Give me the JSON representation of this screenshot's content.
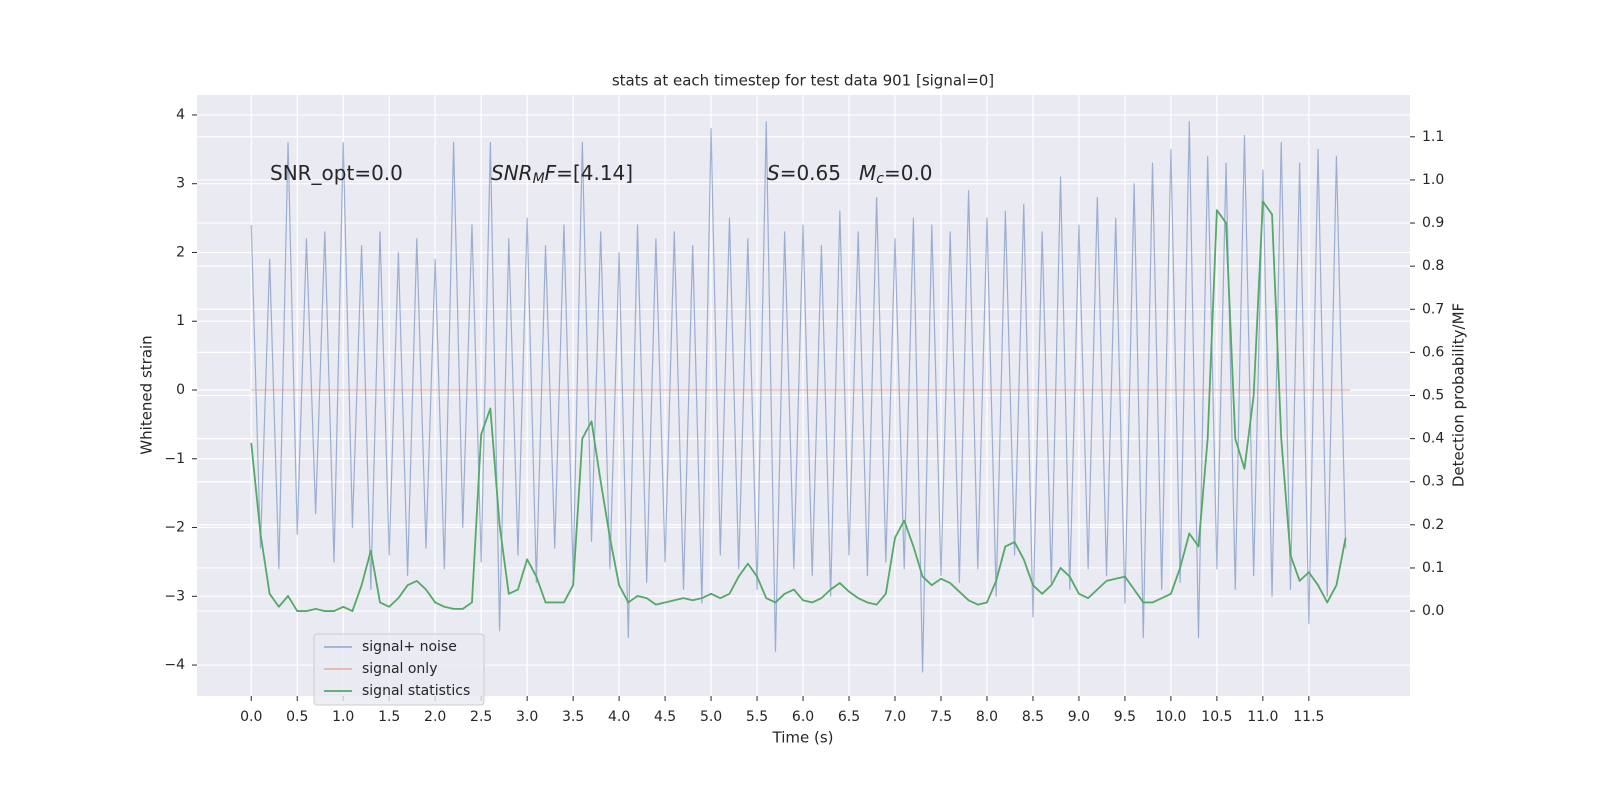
{
  "chart_data": {
    "type": "line",
    "title": "stats at each timestep for test data 901 [signal=0]",
    "xlabel": "Time (s)",
    "ylabel": "Whitened strain",
    "y2label": "Detection probability/MF",
    "xlim": [
      -0.59,
      12.6
    ],
    "ylim": [
      -4.45,
      4.29
    ],
    "y2lim": [
      -0.197,
      1.197
    ],
    "xticks": [
      {
        "value": 0,
        "label": "0.0"
      },
      0.5,
      {
        "value": 1,
        "label": "1.0"
      },
      1.5,
      {
        "value": 2,
        "label": "2.0"
      },
      2.5,
      {
        "value": 3,
        "label": "3.0"
      },
      3.5,
      {
        "value": 4,
        "label": "4.0"
      },
      4.5,
      {
        "value": 5,
        "label": "5.0"
      },
      5.5,
      {
        "value": 6,
        "label": "6.0"
      },
      6.5,
      {
        "value": 7,
        "label": "7.0"
      },
      7.5,
      {
        "value": 8,
        "label": "8.0"
      },
      8.5,
      {
        "value": 9,
        "label": "9.0"
      },
      9.5,
      {
        "value": 10,
        "label": "10.0"
      },
      10.5,
      {
        "value": 11,
        "label": "11.0"
      },
      11.5
    ],
    "yticks": [
      {
        "value": -4,
        "label": "−4"
      },
      {
        "value": -3,
        "label": "−3"
      },
      {
        "value": -2,
        "label": "−2"
      },
      {
        "value": -1,
        "label": "−1"
      },
      0,
      1,
      2,
      3,
      4
    ],
    "y2ticks": [
      {
        "value": 0,
        "label": "0.0"
      },
      0.1,
      0.2,
      0.3,
      0.4,
      0.5,
      0.6,
      0.7,
      0.8,
      0.9,
      {
        "value": 1,
        "label": "1.0"
      },
      1.1
    ],
    "grid": true,
    "legend": "lower left",
    "annotations": [
      [
        {
          "text": "SNR_opt=0.0"
        }
      ],
      [
        {
          "text": "SNR",
          "italic": true
        },
        {
          "text": "M",
          "italic": true,
          "sub": true
        },
        {
          "text": "F",
          "italic": true
        },
        {
          "text": "=[4.14]"
        }
      ],
      [
        {
          "text": "S",
          "italic": true
        },
        {
          "text": "=0.65"
        }
      ],
      [
        {
          "text": "M",
          "italic": true
        },
        {
          "text": "c",
          "italic": true,
          "sub": true
        },
        {
          "text": "=0.0"
        }
      ]
    ],
    "series": [
      {
        "name": "signal+ noise",
        "color": "#4c72b0",
        "opacity": 0.5,
        "x": [
          0,
          0.1,
          0.2,
          0.3,
          0.4,
          0.5,
          0.6,
          0.7,
          0.8,
          0.9,
          1,
          1.1,
          1.2,
          1.3,
          1.4,
          1.5,
          1.6,
          1.7,
          1.8,
          1.9,
          2,
          2.1,
          2.2,
          2.3,
          2.4,
          2.5,
          2.6,
          2.7,
          2.8,
          2.9,
          3,
          3.1,
          3.2,
          3.3,
          3.4,
          3.5,
          3.6,
          3.7,
          3.8,
          3.9,
          4,
          4.1,
          4.2,
          4.3,
          4.4,
          4.5,
          4.6,
          4.7,
          4.8,
          4.9,
          5,
          5.1,
          5.2,
          5.3,
          5.4,
          5.5,
          5.6,
          5.7,
          5.8,
          5.9,
          6,
          6.1,
          6.2,
          6.3,
          6.4,
          6.5,
          6.6,
          6.7,
          6.8,
          6.9,
          7,
          7.1,
          7.2,
          7.3,
          7.4,
          7.5,
          7.6,
          7.7,
          7.8,
          7.9,
          8,
          8.1,
          8.2,
          8.3,
          8.4,
          8.5,
          8.6,
          8.7,
          8.8,
          8.9,
          9,
          9.1,
          9.2,
          9.3,
          9.4,
          9.5,
          9.6,
          9.7,
          9.8,
          9.9,
          10,
          10.1,
          10.2,
          10.3,
          10.4,
          10.5,
          10.6,
          10.7,
          10.8,
          10.9,
          11,
          11.1,
          11.2,
          11.3,
          11.4,
          11.5,
          11.6,
          11.7,
          11.8,
          11.9
        ],
        "values": [
          2.4,
          -2.3,
          1.9,
          -2.6,
          3.6,
          -2.1,
          2.2,
          -1.8,
          2.3,
          -2.5,
          3.6,
          -2.0,
          2.1,
          -2.9,
          2.3,
          -2.4,
          2.0,
          -2.7,
          2.2,
          -2.3,
          1.9,
          -2.6,
          3.6,
          -2.0,
          2.4,
          -2.5,
          3.6,
          -3.5,
          2.2,
          -2.4,
          2.5,
          -2.8,
          2.1,
          -2.3,
          2.4,
          -2.7,
          3.6,
          -2.2,
          2.3,
          -2.6,
          2.0,
          -3.6,
          2.4,
          -2.8,
          2.2,
          -2.5,
          2.3,
          -2.9,
          2.1,
          -3.1,
          3.8,
          -2.4,
          2.5,
          -2.6,
          2.2,
          -2.9,
          3.9,
          -3.8,
          2.3,
          -2.6,
          2.4,
          -2.7,
          2.1,
          -3.0,
          2.6,
          -2.4,
          2.3,
          -2.7,
          2.8,
          -2.5,
          2.2,
          -2.6,
          2.5,
          -4.1,
          2.4,
          -2.7,
          2.3,
          -2.8,
          2.9,
          -2.6,
          2.5,
          -3.0,
          2.6,
          -2.4,
          2.7,
          -3.3,
          2.3,
          -2.8,
          3.1,
          -2.9,
          2.4,
          -2.6,
          2.8,
          -2.7,
          2.5,
          -3.1,
          3.0,
          -3.6,
          3.3,
          -2.9,
          3.5,
          -2.8,
          3.9,
          -3.6,
          3.4,
          -2.6,
          3.3,
          -2.9,
          3.7,
          -2.7,
          3.2,
          -3.0,
          3.6,
          -2.9,
          3.3,
          -3.4,
          3.5,
          -3.0,
          3.4,
          -2.3
        ]
      },
      {
        "name": "signal only",
        "color": "#dd8452",
        "opacity": 0.5,
        "x": [
          0,
          11.95
        ],
        "values": [
          0,
          0
        ]
      },
      {
        "name": "signal statistics",
        "color": "#55a868",
        "opacity": 1,
        "axis": "y2",
        "x": [
          0,
          0.1,
          0.2,
          0.3,
          0.4,
          0.5,
          0.6,
          0.7,
          0.8,
          0.9,
          1,
          1.1,
          1.2,
          1.3,
          1.4,
          1.5,
          1.6,
          1.7,
          1.8,
          1.9,
          2,
          2.1,
          2.2,
          2.3,
          2.4,
          2.5,
          2.6,
          2.7,
          2.8,
          2.9,
          3,
          3.1,
          3.2,
          3.3,
          3.4,
          3.5,
          3.6,
          3.7,
          3.8,
          3.9,
          4,
          4.1,
          4.2,
          4.3,
          4.4,
          4.5,
          4.6,
          4.7,
          4.8,
          4.9,
          5,
          5.1,
          5.2,
          5.3,
          5.4,
          5.5,
          5.6,
          5.7,
          5.8,
          5.9,
          6,
          6.1,
          6.2,
          6.3,
          6.4,
          6.5,
          6.6,
          6.7,
          6.8,
          6.9,
          7,
          7.1,
          7.2,
          7.3,
          7.4,
          7.5,
          7.6,
          7.7,
          7.8,
          7.9,
          8,
          8.1,
          8.2,
          8.3,
          8.4,
          8.5,
          8.6,
          8.7,
          8.8,
          8.9,
          9,
          9.1,
          9.2,
          9.3,
          9.4,
          9.5,
          9.6,
          9.7,
          9.8,
          9.9,
          10,
          10.1,
          10.2,
          10.3,
          10.4,
          10.5,
          10.6,
          10.7,
          10.8,
          10.9,
          11,
          11.1,
          11.2,
          11.3,
          11.4,
          11.5,
          11.6,
          11.7,
          11.8,
          11.9
        ],
        "values": [
          0.39,
          0.18,
          0.04,
          0.01,
          0.035,
          0.0,
          0.0,
          0.005,
          0.0,
          0.0,
          0.01,
          0.0,
          0.06,
          0.14,
          0.02,
          0.01,
          0.03,
          0.06,
          0.07,
          0.05,
          0.02,
          0.01,
          0.005,
          0.005,
          0.02,
          0.41,
          0.47,
          0.2,
          0.04,
          0.05,
          0.12,
          0.08,
          0.02,
          0.02,
          0.02,
          0.06,
          0.4,
          0.44,
          0.3,
          0.17,
          0.06,
          0.02,
          0.035,
          0.03,
          0.015,
          0.02,
          0.025,
          0.03,
          0.025,
          0.03,
          0.04,
          0.03,
          0.04,
          0.08,
          0.11,
          0.08,
          0.03,
          0.02,
          0.04,
          0.05,
          0.025,
          0.02,
          0.03,
          0.05,
          0.065,
          0.045,
          0.03,
          0.02,
          0.015,
          0.04,
          0.17,
          0.21,
          0.15,
          0.08,
          0.06,
          0.075,
          0.065,
          0.045,
          0.025,
          0.015,
          0.02,
          0.07,
          0.15,
          0.16,
          0.12,
          0.06,
          0.04,
          0.06,
          0.1,
          0.08,
          0.04,
          0.03,
          0.05,
          0.07,
          0.075,
          0.08,
          0.05,
          0.02,
          0.02,
          0.03,
          0.04,
          0.1,
          0.18,
          0.15,
          0.4,
          0.93,
          0.9,
          0.4,
          0.33,
          0.5,
          0.95,
          0.92,
          0.4,
          0.13,
          0.07,
          0.09,
          0.06,
          0.02,
          0.06,
          0.17
        ]
      }
    ]
  }
}
